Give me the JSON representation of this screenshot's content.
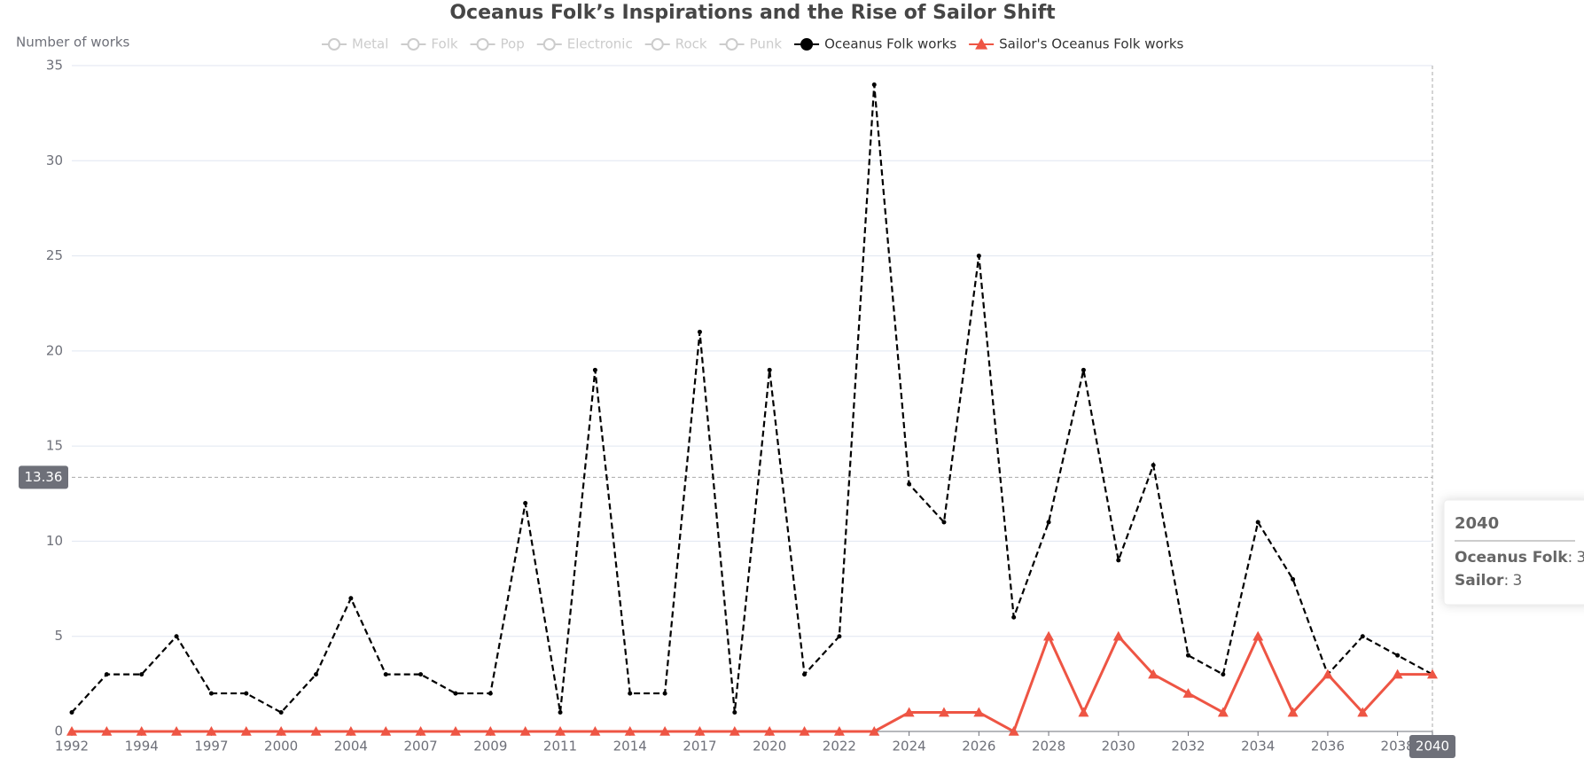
{
  "chart_data": {
    "type": "line",
    "title": "Oceanus Folk’s Inspirations and the Rise of Sailor Shift",
    "y_axis_label": "Number of works",
    "categories": [
      1992,
      null,
      1994,
      null,
      1997,
      null,
      2000,
      null,
      2004,
      null,
      2007,
      null,
      2009,
      null,
      2011,
      null,
      2014,
      null,
      2017,
      null,
      2020,
      null,
      2022,
      null,
      2024,
      null,
      2026,
      null,
      2028,
      null,
      2030,
      null,
      2032,
      null,
      2034,
      null,
      2036,
      null,
      2038,
      2040
    ],
    "series": [
      {
        "name": "Oceanus Folk works",
        "color": "#000000",
        "line_style": "dashed",
        "marker": "circle",
        "values": [
          1,
          3,
          3,
          5,
          2,
          2,
          1,
          3,
          7,
          3,
          3,
          2,
          2,
          12,
          1,
          19,
          2,
          2,
          21,
          1,
          19,
          3,
          5,
          34,
          13,
          11,
          25,
          6,
          11,
          19,
          9,
          14,
          4,
          3,
          11,
          8,
          3,
          5,
          4,
          3
        ]
      },
      {
        "name": "Sailor's Oceanus Folk works",
        "color": "#ee5544",
        "line_style": "solid",
        "marker": "triangle",
        "values": [
          0,
          0,
          0,
          0,
          0,
          0,
          0,
          0,
          0,
          0,
          0,
          0,
          0,
          0,
          0,
          0,
          0,
          0,
          0,
          0,
          0,
          0,
          0,
          0,
          1,
          1,
          1,
          0,
          5,
          1,
          5,
          3,
          2,
          1,
          5,
          1,
          3,
          1,
          3,
          3
        ]
      }
    ],
    "legend_inactive": [
      "Metal",
      "Folk",
      "Pop",
      "Electronic",
      "Rock",
      "Punk"
    ],
    "inactive_color": "#cccccc",
    "ylim": [
      0,
      35
    ],
    "yticks": [
      0,
      5,
      10,
      15,
      20,
      25,
      30,
      35
    ],
    "grid": true,
    "crosshair_y": 13.36,
    "highlighted_category_index": 39,
    "tooltip": {
      "title": "2040",
      "items": [
        {
          "name": "Oceanus Folk",
          "value": 3
        },
        {
          "name": "Sailor",
          "value": 3
        }
      ]
    }
  }
}
